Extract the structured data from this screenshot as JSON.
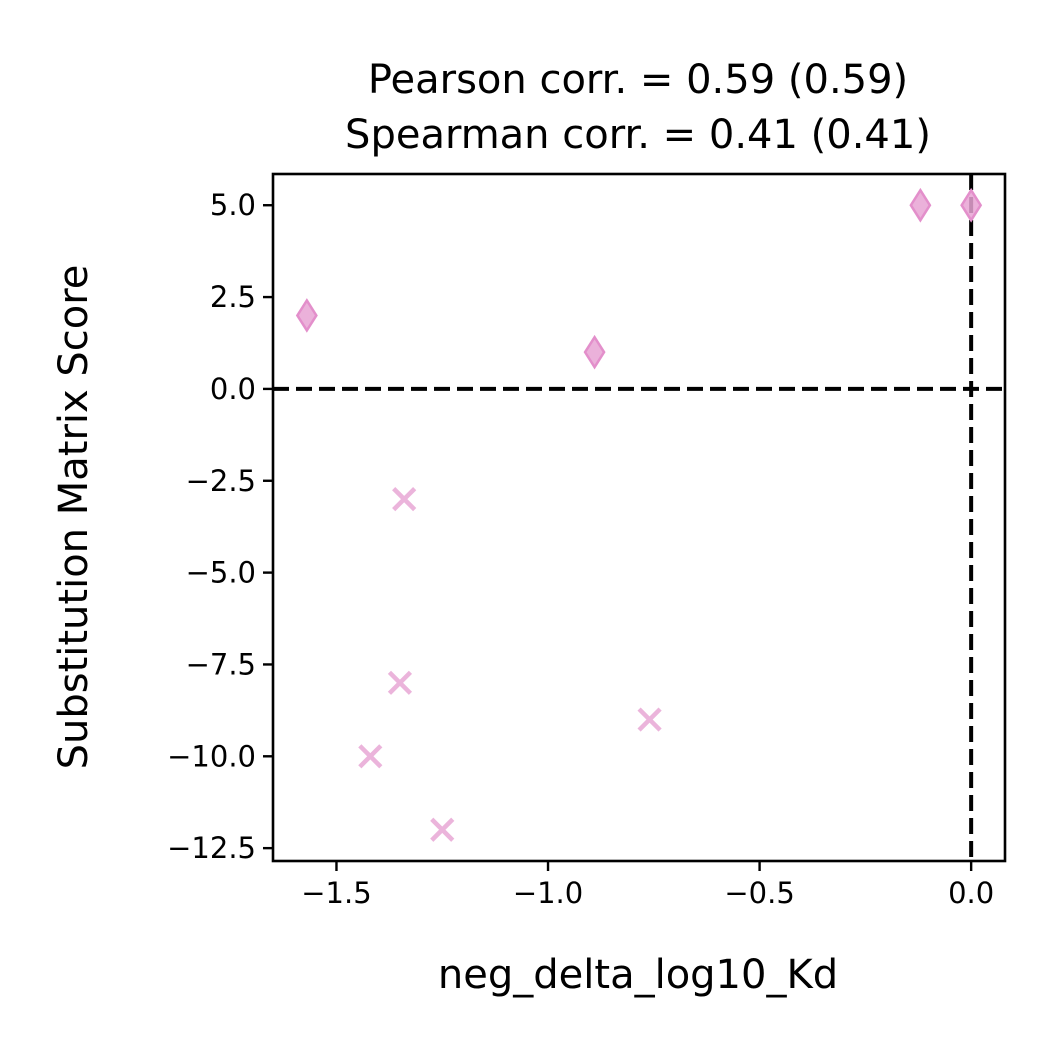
{
  "chart_data": {
    "type": "scatter",
    "title": "Pearson corr. = 0.59 (0.59)",
    "subtitle": "Spearman corr. = 0.41 (0.41)",
    "xlabel": "neg_delta_log10_Kd",
    "ylabel": "Substitution Matrix Score",
    "xlim": [
      -1.65,
      0.08
    ],
    "ylim": [
      -12.85,
      5.85
    ],
    "x_ticks": [
      -1.5,
      -1.0,
      -0.5,
      0.0
    ],
    "x_tick_labels": [
      "−1.5",
      "−1.0",
      "−0.5",
      "0.0"
    ],
    "y_ticks": [
      5.0,
      2.5,
      0.0,
      -2.5,
      -5.0,
      -7.5,
      -10.0,
      -12.5
    ],
    "y_tick_labels": [
      "5.0",
      "2.5",
      "0.0",
      "−2.5",
      "−5.0",
      "−7.5",
      "−10.0",
      "−12.5"
    ],
    "grid": false,
    "reference_lines": [
      {
        "orientation": "horizontal",
        "value": 0.0,
        "style": "dashed",
        "color": "#000000"
      },
      {
        "orientation": "vertical",
        "value": 0.0,
        "style": "dashed",
        "color": "#000000"
      }
    ],
    "series": [
      {
        "marker": "thin_diamond",
        "color": "#e8a3d4",
        "points": [
          {
            "x": -1.57,
            "y": 2.0
          },
          {
            "x": -0.89,
            "y": 1.0
          },
          {
            "x": -0.12,
            "y": 5.0
          },
          {
            "x": 0.0,
            "y": 5.0
          }
        ]
      },
      {
        "marker": "x",
        "color": "#ebb4db",
        "points": [
          {
            "x": -1.34,
            "y": -3.0
          },
          {
            "x": -1.35,
            "y": -8.0
          },
          {
            "x": -1.42,
            "y": -10.0
          },
          {
            "x": -1.25,
            "y": -12.0
          },
          {
            "x": -0.76,
            "y": -9.0
          }
        ]
      }
    ]
  }
}
